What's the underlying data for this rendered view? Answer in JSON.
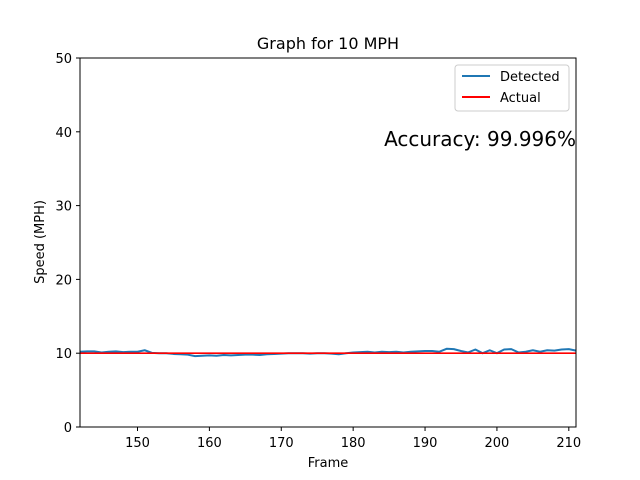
{
  "chart_data": {
    "type": "line",
    "title": "Graph for 10 MPH",
    "xlabel": "Frame",
    "ylabel": "Speed (MPH)",
    "xlim": [
      142,
      211
    ],
    "ylim": [
      0,
      50
    ],
    "xticks": [
      150,
      160,
      170,
      180,
      190,
      200,
      210
    ],
    "yticks": [
      0,
      10,
      20,
      30,
      40,
      50
    ],
    "grid": false,
    "legend_position": "top-right",
    "annotation": "Accuracy: 99.996%",
    "series": [
      {
        "name": "Detected",
        "color": "#1f77b4",
        "x": [
          142,
          143,
          144,
          145,
          146,
          147,
          148,
          149,
          150,
          151,
          152,
          153,
          154,
          155,
          156,
          157,
          158,
          159,
          160,
          161,
          162,
          163,
          164,
          165,
          166,
          167,
          168,
          169,
          170,
          171,
          172,
          173,
          174,
          175,
          176,
          177,
          178,
          179,
          180,
          181,
          182,
          183,
          184,
          185,
          186,
          187,
          188,
          189,
          190,
          191,
          192,
          193,
          194,
          195,
          196,
          197,
          198,
          199,
          200,
          201,
          202,
          203,
          204,
          205,
          206,
          207,
          208,
          209,
          210,
          211
        ],
        "y": [
          10.2,
          10.25,
          10.25,
          10.1,
          10.2,
          10.25,
          10.15,
          10.2,
          10.2,
          10.4,
          10.05,
          10.0,
          10.0,
          9.9,
          9.85,
          9.8,
          9.6,
          9.65,
          9.7,
          9.65,
          9.75,
          9.7,
          9.75,
          9.8,
          9.8,
          9.75,
          9.85,
          9.9,
          9.95,
          10.0,
          10.0,
          10.0,
          9.95,
          10.0,
          10.0,
          9.95,
          9.85,
          10.0,
          10.1,
          10.15,
          10.2,
          10.1,
          10.2,
          10.15,
          10.2,
          10.1,
          10.2,
          10.25,
          10.3,
          10.3,
          10.2,
          10.6,
          10.55,
          10.3,
          10.1,
          10.5,
          10.0,
          10.4,
          10.0,
          10.5,
          10.55,
          10.1,
          10.2,
          10.4,
          10.2,
          10.4,
          10.35,
          10.5,
          10.55,
          10.35
        ]
      },
      {
        "name": "Actual",
        "color": "#ff0000",
        "x": [
          142,
          211
        ],
        "y": [
          10,
          10
        ]
      }
    ]
  }
}
